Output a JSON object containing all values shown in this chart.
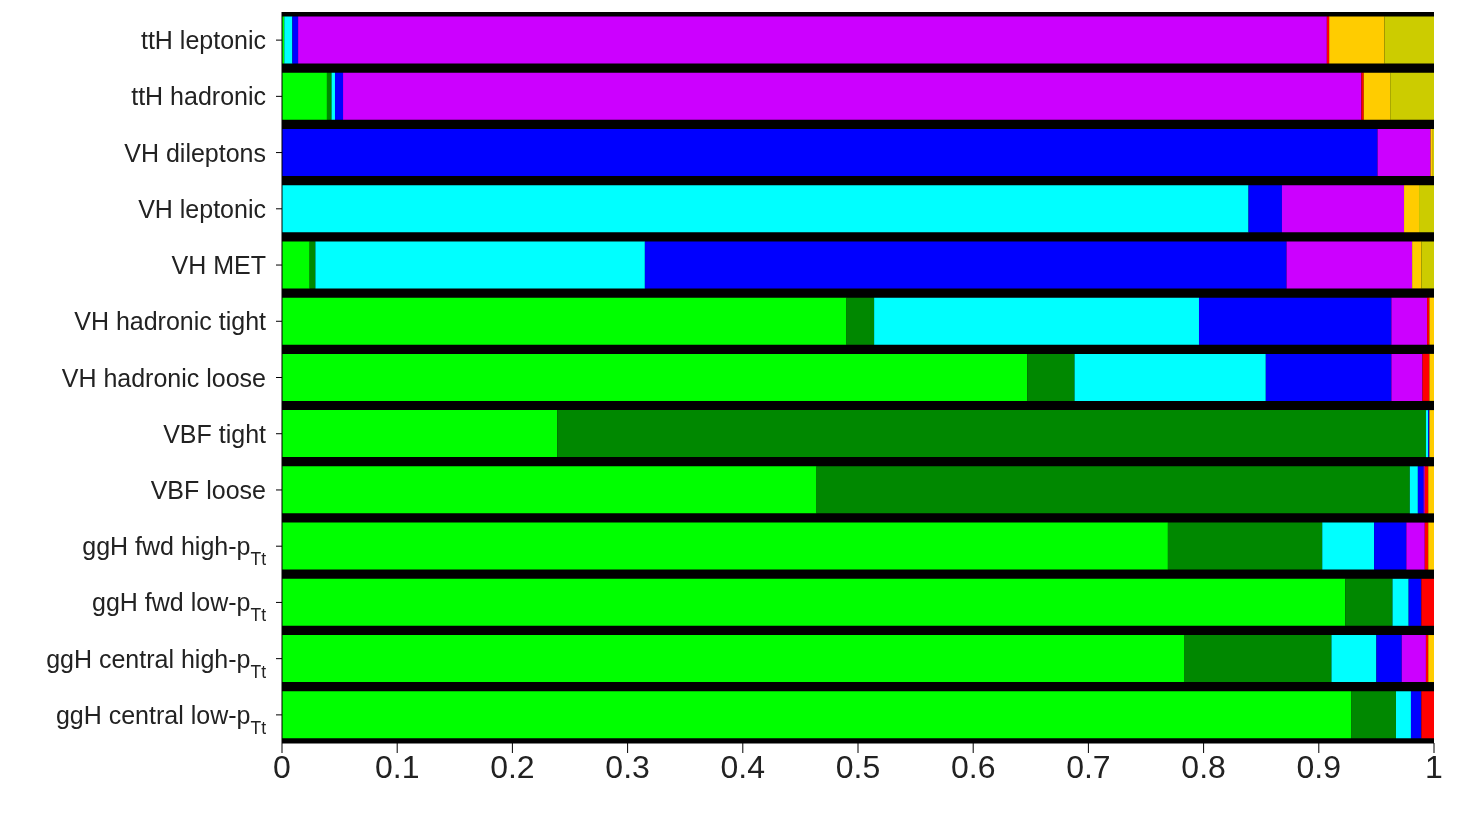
{
  "chart_data": {
    "type": "bar",
    "orientation": "horizontal",
    "stacked": true,
    "categories": [
      "ttH leptonic",
      "ttH hadronic",
      "VH dileptons",
      "VH leptonic",
      "VH MET",
      "VH hadronic tight",
      "VH hadronic loose",
      "VBF tight",
      "VBF loose",
      "ggH fwd high-p$_{Tt}$",
      "ggH fwd low-p$_{Tt}$",
      "ggH central high-p$_{Tt}$",
      "ggH central low-p$_{Tt}$"
    ],
    "series": [
      {
        "color": "#00ff00",
        "values": [
          0.002,
          0.039,
          0,
          0,
          0.024,
          0.49,
          0.647,
          0.239,
          0.464,
          0.769,
          0.923,
          0.783,
          0.928
        ]
      },
      {
        "color": "#008800",
        "values": [
          0,
          0.004,
          0,
          0,
          0.005,
          0.024,
          0.041,
          0.754,
          0.515,
          0.134,
          0.041,
          0.128,
          0.039
        ]
      },
      {
        "color": "#00ffff",
        "values": [
          0.007,
          0.003,
          0,
          0.839,
          0.286,
          0.282,
          0.166,
          0.002,
          0.007,
          0.045,
          0.014,
          0.039,
          0.013
        ]
      },
      {
        "color": "#0000ff",
        "values": [
          0.005,
          0.007,
          0.951,
          0.029,
          0.557,
          0.167,
          0.109,
          0.001,
          0.005,
          0.028,
          0.011,
          0.022,
          0.009
        ]
      },
      {
        "color": "#cc00ff",
        "values": [
          0.893,
          0.884,
          0.046,
          0.106,
          0.109,
          0.031,
          0.027,
          0,
          0.001,
          0.016,
          0,
          0.021,
          0
        ]
      },
      {
        "color": "#ff0000",
        "values": [
          0.002,
          0.002,
          0,
          0,
          0,
          0.002,
          0.006,
          0,
          0.003,
          0.003,
          0.011,
          0.002,
          0.011
        ]
      },
      {
        "color": "#ffcc00",
        "values": [
          0.048,
          0.023,
          0.002,
          0.013,
          0.008,
          0.004,
          0.004,
          0.004,
          0.005,
          0.005,
          0,
          0.005,
          0
        ]
      },
      {
        "color": "#cccc00",
        "values": [
          0.043,
          0.038,
          0.001,
          0.013,
          0.011,
          0,
          0,
          0,
          0,
          0,
          0,
          0,
          0
        ]
      }
    ],
    "xlim": [
      0,
      1
    ],
    "xticks": [
      0,
      0.1,
      0.2,
      0.3,
      0.4,
      0.5,
      0.6,
      0.7,
      0.8,
      0.9,
      1
    ],
    "grid": false,
    "legend": false
  }
}
